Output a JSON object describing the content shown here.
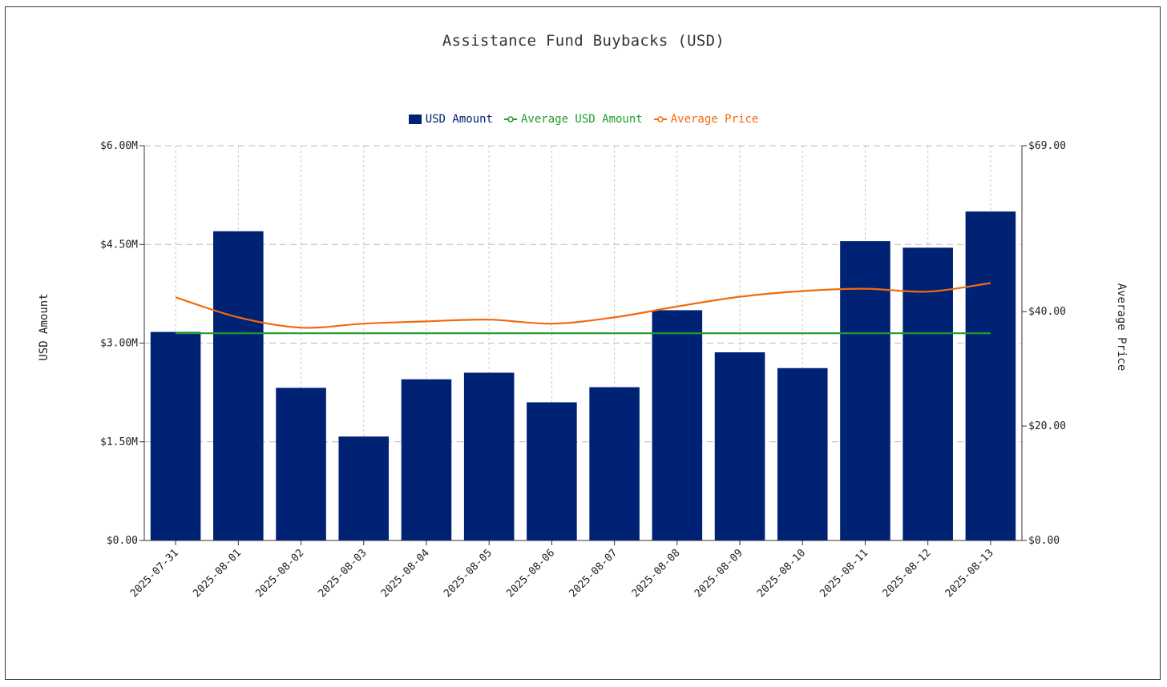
{
  "chart_data": {
    "type": "bar",
    "title": "Assistance Fund Buybacks (USD)",
    "categories": [
      "2025-07-31",
      "2025-08-01",
      "2025-08-02",
      "2025-08-03",
      "2025-08-04",
      "2025-08-05",
      "2025-08-06",
      "2025-08-07",
      "2025-08-08",
      "2025-08-09",
      "2025-08-10",
      "2025-08-11",
      "2025-08-12",
      "2025-08-13"
    ],
    "series": [
      {
        "name": "USD Amount",
        "type": "bar",
        "axis": "left",
        "color": "#002275",
        "values": [
          3.17,
          4.7,
          2.32,
          1.58,
          2.45,
          2.55,
          2.1,
          2.33,
          3.5,
          2.86,
          2.62,
          4.55,
          4.45,
          5.0
        ]
      },
      {
        "name": "Average USD Amount",
        "type": "line",
        "axis": "left",
        "color": "#1f9e2f",
        "values": [
          3.15,
          3.15,
          3.15,
          3.15,
          3.15,
          3.15,
          3.15,
          3.15,
          3.15,
          3.15,
          3.15,
          3.15,
          3.15,
          3.15
        ]
      },
      {
        "name": "Average Price",
        "type": "line",
        "axis": "right",
        "color": "#f26a0d",
        "values": [
          42.5,
          39.0,
          37.2,
          37.9,
          38.3,
          38.6,
          37.9,
          39.0,
          40.9,
          42.6,
          43.6,
          44.0,
          43.5,
          45.0
        ]
      }
    ],
    "ylabel": "USD Amount",
    "y2label": "Average Price",
    "ylim": [
      0,
      6
    ],
    "y2lim": [
      0,
      69
    ],
    "yticks": [
      0,
      1.5,
      3.0,
      4.5,
      6.0
    ],
    "ytick_labels": [
      "$0.00",
      "$1.50M",
      "$3.00M",
      "$4.50M",
      "$6.00M"
    ],
    "y2ticks": [
      0,
      20,
      40,
      69
    ],
    "y2tick_labels": [
      "$0.00",
      "$20.00",
      "$40.00",
      "$69.00"
    ],
    "grid": true,
    "legend": "top-center"
  }
}
